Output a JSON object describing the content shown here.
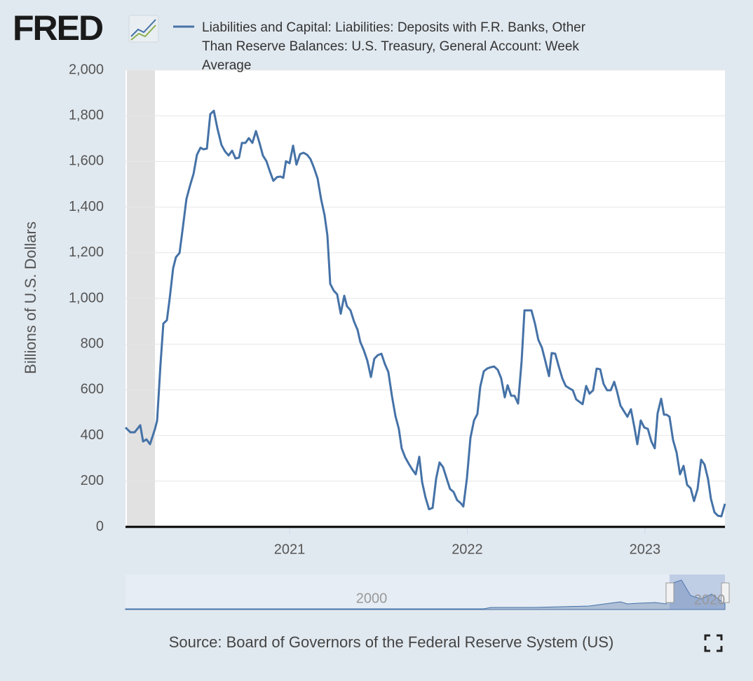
{
  "chart_data": {
    "type": "line",
    "logo": "FRED",
    "series": [
      {
        "name": "Liabilities and Capital: Liabilities: Deposits with F.R. Banks, Other Than Reserve Balances: U.S. Treasury, General Account: Week Average",
        "color": "#4572a7",
        "x": [
          2020.077,
          2020.105,
          2020.128,
          2020.16,
          2020.176,
          2020.195,
          2020.215,
          2020.243,
          2020.255,
          2020.274,
          2020.29,
          2020.31,
          2020.326,
          2020.345,
          2020.361,
          2020.381,
          2020.397,
          2020.42,
          2020.44,
          2020.46,
          2020.479,
          2020.499,
          2020.515,
          2020.535,
          2020.554,
          2020.574,
          2020.594,
          2020.617,
          2020.637,
          2020.657,
          2020.677,
          2020.696,
          2020.716,
          2020.732,
          2020.752,
          2020.771,
          2020.791,
          2020.811,
          2020.83,
          2020.85,
          2020.87,
          2020.89,
          2020.909,
          2020.929,
          2020.949,
          2020.965,
          2020.98,
          2021.0,
          2021.02,
          2021.039,
          2021.059,
          2021.079,
          2021.099,
          2021.118,
          2021.138,
          2021.158,
          2021.178,
          2021.197,
          2021.213,
          2021.229,
          2021.249,
          2021.268,
          2021.288,
          2021.308,
          2021.323,
          2021.343,
          2021.363,
          2021.383,
          2021.398,
          2021.418,
          2021.438,
          2021.458,
          2021.477,
          2021.497,
          2021.517,
          2021.537,
          2021.556,
          2021.576,
          2021.596,
          2021.615,
          2021.631,
          2021.651,
          2021.671,
          2021.69,
          2021.71,
          2021.73,
          2021.746,
          2021.765,
          2021.785,
          2021.805,
          2021.825,
          2021.844,
          2021.864,
          2021.884,
          2021.903,
          2021.923,
          2021.943,
          2021.963,
          2021.978,
          2021.998,
          2022.018,
          2022.038,
          2022.057,
          2022.073,
          2022.093,
          2022.112,
          2022.132,
          2022.152,
          2022.172,
          2022.191,
          2022.211,
          2022.227,
          2022.247,
          2022.266,
          2022.286,
          2022.306,
          2022.322,
          2022.341,
          2022.361,
          2022.381,
          2022.4,
          2022.42,
          2022.44,
          2022.46,
          2022.475,
          2022.495,
          2022.515,
          2022.535,
          2022.554,
          2022.574,
          2022.594,
          2022.613,
          2022.629,
          2022.649,
          2022.669,
          2022.688,
          2022.708,
          2022.728,
          2022.748,
          2022.767,
          2022.787,
          2022.807,
          2022.827,
          2022.842,
          2022.862,
          2022.882,
          2022.901,
          2022.921,
          2022.941,
          2022.957,
          2022.976,
          2022.996,
          2023.016,
          2023.036,
          2023.055,
          2023.071,
          2023.091,
          2023.107,
          2023.122,
          2023.138,
          2023.158,
          2023.178,
          2023.197,
          2023.217,
          2023.237,
          2023.257,
          2023.276,
          2023.296,
          2023.316,
          2023.335,
          2023.355,
          2023.371,
          2023.391,
          2023.41,
          2023.43,
          2023.45
        ],
        "values": [
          435,
          414,
          414,
          445,
          374,
          383,
          362,
          429,
          466,
          712,
          890,
          905,
          1003,
          1132,
          1181,
          1199,
          1294,
          1436,
          1494,
          1546,
          1629,
          1660,
          1653,
          1656,
          1807,
          1822,
          1745,
          1672,
          1644,
          1626,
          1647,
          1613,
          1617,
          1681,
          1681,
          1702,
          1681,
          1733,
          1684,
          1626,
          1601,
          1555,
          1515,
          1531,
          1534,
          1528,
          1601,
          1592,
          1669,
          1586,
          1632,
          1638,
          1629,
          1610,
          1571,
          1525,
          1433,
          1365,
          1276,
          1064,
          1034,
          1018,
          933,
          1012,
          966,
          948,
          899,
          862,
          810,
          773,
          727,
          656,
          736,
          752,
          758,
          712,
          678,
          574,
          485,
          429,
          344,
          304,
          276,
          252,
          230,
          307,
          196,
          129,
          77,
          83,
          212,
          282,
          261,
          212,
          166,
          153,
          117,
          104,
          89,
          212,
          390,
          466,
          494,
          613,
          681,
          693,
          699,
          702,
          687,
          650,
          567,
          620,
          574,
          574,
          540,
          727,
          948,
          948,
          948,
          890,
          819,
          785,
          724,
          660,
          761,
          758,
          702,
          650,
          617,
          607,
          598,
          558,
          549,
          537,
          617,
          583,
          598,
          693,
          690,
          626,
          598,
          598,
          635,
          595,
          531,
          506,
          482,
          515,
          433,
          362,
          466,
          435,
          429,
          374,
          344,
          497,
          561,
          491,
          491,
          482,
          380,
          325,
          230,
          267,
          184,
          169,
          113,
          166,
          294,
          273,
          209,
          123,
          64,
          49,
          46,
          101
        ]
      }
    ],
    "xlim": [
      2020.077,
      2023.45
    ],
    "xticks": [
      {
        "value": 2021,
        "label": "2021"
      },
      {
        "value": 2022,
        "label": "2022"
      },
      {
        "value": 2023,
        "label": "2023"
      }
    ],
    "ylim": [
      0,
      2000
    ],
    "yticks": [
      0,
      200,
      400,
      600,
      800,
      {
        "value": 1000,
        "label": "1,000"
      },
      {
        "value": 1200,
        "label": "1,200"
      },
      {
        "value": 1400,
        "label": "1,400"
      },
      {
        "value": 1600,
        "label": "1,600"
      },
      {
        "value": 1800,
        "label": "1,800"
      },
      {
        "value": 2000,
        "label": "2,000"
      }
    ],
    "ylabel": "Billions of U.S. Dollars",
    "grid": true,
    "recession": [
      2020.085,
      2020.243
    ],
    "navigator_labels": [
      "2000",
      "2020"
    ],
    "source": "Source: Board of Governors of the Federal Reserve System (US)"
  }
}
